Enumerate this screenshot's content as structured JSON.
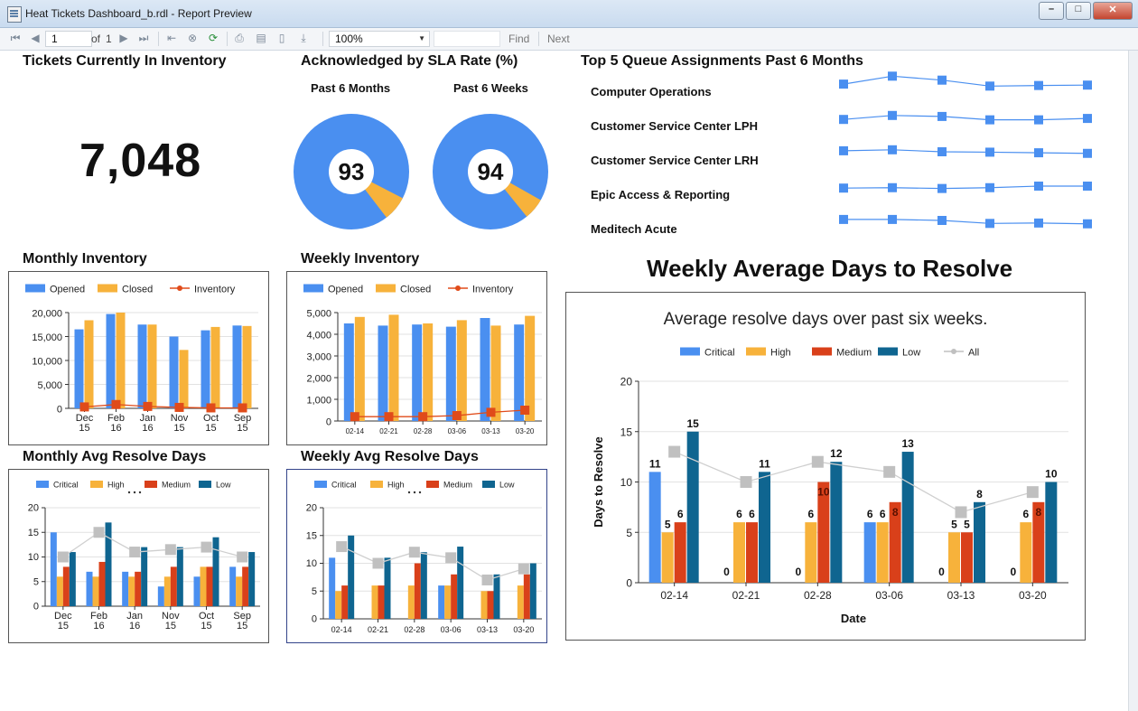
{
  "window": {
    "title": "Heat Tickets Dashboard_b.rdl - Report Preview",
    "min": "–",
    "max": "□",
    "close": "✕"
  },
  "toolbar": {
    "page": "1",
    "of_label": "of",
    "page_count": "1",
    "zoom": "100%",
    "find": "Find",
    "next": "Next"
  },
  "tickets": {
    "title": "Tickets Currently In Inventory",
    "value": "7,048"
  },
  "sla": {
    "title": "Acknowledged by SLA Rate (%)",
    "months_label": "Past 6 Months",
    "months_value": "93",
    "months_pct": 93,
    "weeks_label": "Past 6 Weeks",
    "weeks_value": "94",
    "weeks_pct": 94,
    "color_main": "#4a8ff0",
    "color_rest": "#f7b23b"
  },
  "queues": {
    "title": "Top 5 Queue Assignments Past 6 Months",
    "items": [
      {
        "label": "Computer Operations",
        "values": [
          0.45,
          0.85,
          0.65,
          0.35,
          0.38,
          0.4
        ]
      },
      {
        "label": "Customer Service Center LPH",
        "values": [
          0.4,
          0.6,
          0.55,
          0.38,
          0.38,
          0.45
        ]
      },
      {
        "label": "Customer Service Center LRH",
        "values": [
          0.55,
          0.6,
          0.5,
          0.48,
          0.45,
          0.42
        ]
      },
      {
        "label": "Epic Access & Reporting",
        "values": [
          0.4,
          0.42,
          0.38,
          0.42,
          0.5,
          0.5
        ]
      },
      {
        "label": "Meditech Acute",
        "values": [
          0.55,
          0.55,
          0.5,
          0.35,
          0.37,
          0.33
        ]
      }
    ]
  },
  "colors": {
    "opened": "#4a8ff0",
    "closed": "#f7b23b",
    "inventory": "#e04b1a",
    "critical": "#4a8ff0",
    "high": "#f7b23b",
    "medium": "#d9401a",
    "low": "#0f6590",
    "all": "#c0c0c0"
  },
  "monthly_inventory": {
    "title": "Monthly Inventory",
    "chart_data": {
      "type": "bar",
      "legend": [
        "Opened",
        "Closed",
        "Inventory"
      ],
      "categories": [
        "Dec 15",
        "Feb 16",
        "Jan 16",
        "Nov 15",
        "Oct 15",
        "Sep 15"
      ],
      "series": [
        {
          "name": "Opened",
          "values": [
            16500,
            19700,
            17500,
            15000,
            16300,
            17300
          ]
        },
        {
          "name": "Closed",
          "values": [
            18400,
            20000,
            17500,
            12200,
            17000,
            17200
          ]
        },
        {
          "name": "Inventory",
          "values": [
            300,
            800,
            400,
            200,
            100,
            100
          ]
        }
      ],
      "ylim": [
        0,
        20000
      ],
      "yticks": [
        "0",
        "5,000",
        "10,000",
        "15,000",
        "20,000"
      ]
    }
  },
  "weekly_inventory": {
    "title": "Weekly Inventory",
    "chart_data": {
      "type": "bar",
      "legend": [
        "Opened",
        "Closed",
        "Inventory"
      ],
      "categories": [
        "02-14",
        "02-21",
        "02-28",
        "03-06",
        "03-13",
        "03-20"
      ],
      "series": [
        {
          "name": "Opened",
          "values": [
            4500,
            4400,
            4450,
            4350,
            4750,
            4450
          ]
        },
        {
          "name": "Closed",
          "values": [
            4800,
            4900,
            4500,
            4650,
            4400,
            4850
          ]
        },
        {
          "name": "Inventory",
          "values": [
            200,
            200,
            200,
            250,
            400,
            500
          ]
        }
      ],
      "ylim": [
        0,
        5000
      ],
      "yticks": [
        "0",
        "1,000",
        "2,000",
        "3,000",
        "4,000",
        "5,000"
      ]
    }
  },
  "monthly_resolve": {
    "title": "Monthly Avg Resolve Days",
    "chart_data": {
      "type": "bar",
      "legend": [
        "Critical",
        "High",
        "Medium",
        "Low"
      ],
      "categories": [
        "Dec 15",
        "Feb 16",
        "Jan 16",
        "Nov 15",
        "Oct 15",
        "Sep 15"
      ],
      "series": [
        {
          "name": "Critical",
          "values": [
            15,
            7,
            7,
            4,
            6,
            8
          ]
        },
        {
          "name": "High",
          "values": [
            6,
            6,
            6,
            6,
            8,
            6
          ]
        },
        {
          "name": "Medium",
          "values": [
            8,
            9,
            7,
            8,
            8,
            8
          ]
        },
        {
          "name": "Low",
          "values": [
            11,
            17,
            12,
            12,
            14,
            11
          ]
        },
        {
          "name": "All",
          "values": [
            10,
            15,
            11,
            11.5,
            12,
            10
          ]
        }
      ],
      "ylim": [
        0,
        20
      ],
      "yticks": [
        "0",
        "5",
        "10",
        "15",
        "20"
      ]
    }
  },
  "weekly_resolve": {
    "title": "Weekly Avg Resolve Days",
    "chart_data": {
      "type": "bar",
      "legend": [
        "Critical",
        "High",
        "Medium",
        "Low"
      ],
      "categories": [
        "02-14",
        "02-21",
        "02-28",
        "03-06",
        "03-13",
        "03-20"
      ],
      "series": [
        {
          "name": "Critical",
          "values": [
            11,
            0,
            0,
            6,
            0,
            0
          ]
        },
        {
          "name": "High",
          "values": [
            5,
            6,
            6,
            6,
            5,
            6
          ]
        },
        {
          "name": "Medium",
          "values": [
            6,
            6,
            10,
            8,
            5,
            8
          ]
        },
        {
          "name": "Low",
          "values": [
            15,
            11,
            12,
            13,
            8,
            10
          ]
        },
        {
          "name": "All",
          "values": [
            13,
            10,
            12,
            11,
            7,
            9
          ]
        }
      ],
      "ylim": [
        0,
        20
      ],
      "yticks": [
        "0",
        "5",
        "10",
        "15",
        "20"
      ]
    }
  },
  "big_chart": {
    "title": "Weekly Average Days to Resolve",
    "chart_data": {
      "type": "bar",
      "title": "Average resolve days over past six weeks.",
      "legend": [
        "Critical",
        "High",
        "Medium",
        "Low",
        "All"
      ],
      "categories": [
        "02-14",
        "02-21",
        "02-28",
        "03-06",
        "03-13",
        "03-20"
      ],
      "series": [
        {
          "name": "Critical",
          "values": [
            11,
            0,
            0,
            6,
            0,
            0
          ]
        },
        {
          "name": "High",
          "values": [
            5,
            6,
            6,
            6,
            5,
            6
          ]
        },
        {
          "name": "Medium",
          "values": [
            6,
            6,
            10,
            8,
            5,
            8
          ]
        },
        {
          "name": "Low",
          "values": [
            15,
            11,
            12,
            13,
            8,
            10
          ]
        },
        {
          "name": "All",
          "values": [
            13,
            10,
            12,
            11,
            7,
            9
          ]
        }
      ],
      "ylim": [
        0,
        20
      ],
      "yticks": [
        "0",
        "5",
        "10",
        "15",
        "20"
      ],
      "xlabel": "Date",
      "ylabel": "Days to Resolve"
    }
  }
}
